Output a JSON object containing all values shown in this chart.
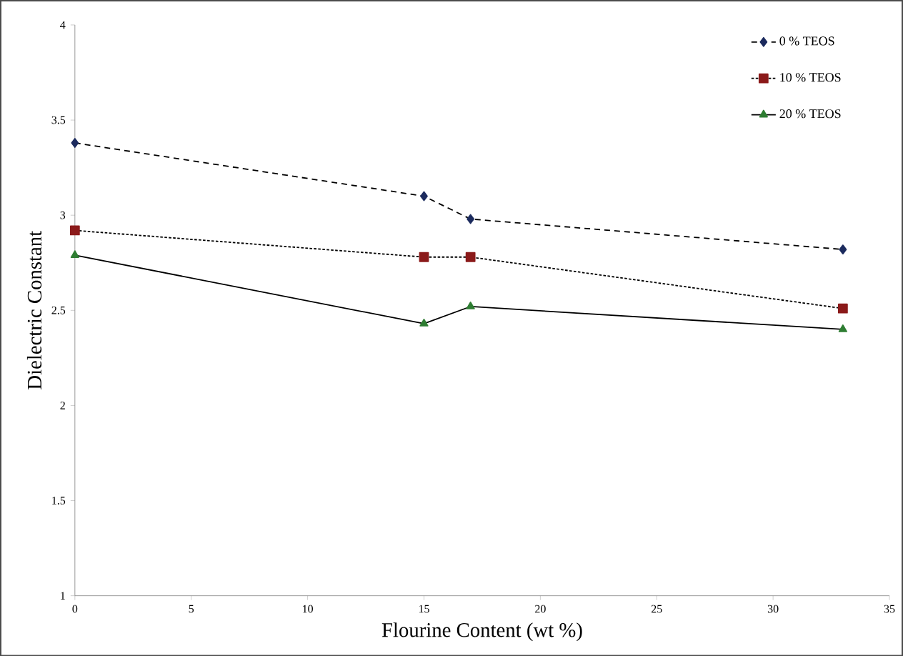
{
  "chart_data": {
    "type": "line",
    "xlabel": "Flourine Content (wt %)",
    "ylabel": "Dielectric Constant",
    "x": [
      0,
      15,
      17,
      33
    ],
    "series": [
      {
        "name": "0 % TEOS",
        "color": "#1c2b5e",
        "marker": "diamond",
        "line_style": "dashed",
        "values": [
          3.38,
          3.1,
          2.98,
          2.82
        ]
      },
      {
        "name": "10 % TEOS",
        "color": "#8b1a1a",
        "marker": "square",
        "line_style": "dotted",
        "values": [
          2.92,
          2.78,
          2.78,
          2.51
        ]
      },
      {
        "name": "20 % TEOS",
        "color": "#2e7d32",
        "marker": "triangle",
        "line_style": "solid",
        "values": [
          2.79,
          2.43,
          2.52,
          2.4
        ]
      }
    ],
    "xlim": [
      0,
      35
    ],
    "xticks": [
      0,
      5,
      10,
      15,
      20,
      25,
      30,
      35
    ],
    "ylim": [
      1,
      4
    ],
    "yticks": [
      1,
      1.5,
      2,
      2.5,
      3,
      3.5,
      4
    ],
    "grid": false,
    "legend": "top right"
  }
}
